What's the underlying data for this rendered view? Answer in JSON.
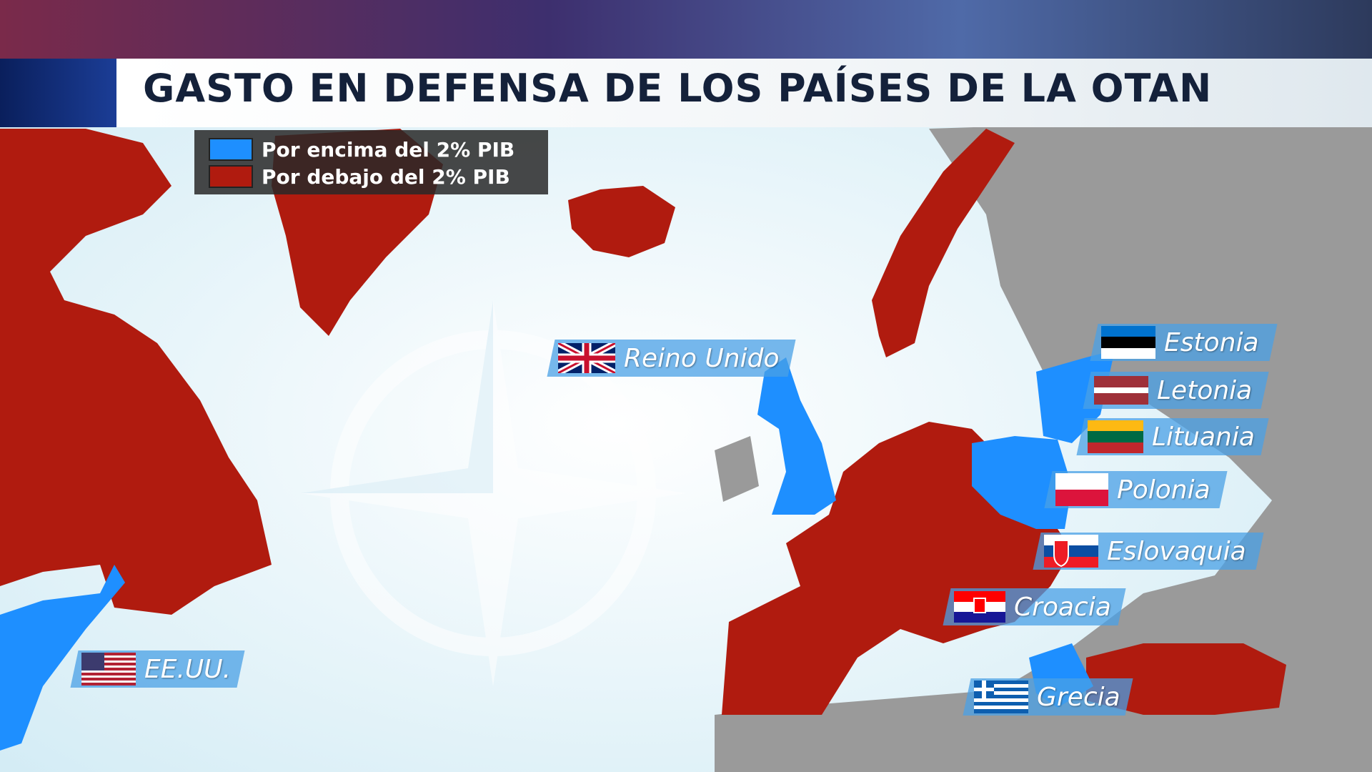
{
  "header": {
    "title": "GASTO EN DEFENSA DE LOS PAÍSES DE LA OTAN"
  },
  "legend": [
    {
      "label": "Por encima del 2% PIB",
      "color": "#1e8fff"
    },
    {
      "label": "Por debajo del 2% PIB",
      "color": "#b01b0f"
    }
  ],
  "labels": [
    "Reino Unido",
    "Estonia",
    "Letonia",
    "Lituania",
    "Polonia",
    "Eslovaquia",
    "Croacia",
    "Grecia",
    "EE.UU."
  ]
}
